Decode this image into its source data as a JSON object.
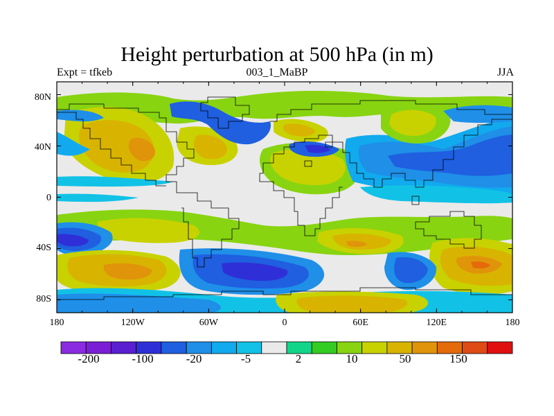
{
  "title": "Height perturbation at 500 hPa (in m)",
  "subtitle_left": "Expt = tfkeb",
  "subtitle_center": "003_1_MaBP",
  "subtitle_right": "JJA",
  "colors": {
    "background": "#ffffff",
    "neutral": "#eaeaea",
    "frame": "#000000"
  },
  "map": {
    "x_ticks": [
      "180",
      "120W",
      "60W",
      "0",
      "60E",
      "120E",
      "180"
    ],
    "y_ticks": [
      "80N",
      "40N",
      "0",
      "40S",
      "80S"
    ],
    "lon_range": [
      -180,
      180
    ],
    "lat_range": [
      -90,
      90
    ]
  },
  "colorbar": {
    "colors": [
      "#8a2be2",
      "#7a1fd6",
      "#5a1fd0",
      "#2f2fd8",
      "#1f5fe0",
      "#1f8fe8",
      "#11aaee",
      "#11c2e6",
      "#eaeaea",
      "#11d68a",
      "#33cc22",
      "#88d411",
      "#c8d200",
      "#d8b400",
      "#e0940a",
      "#e46a0a",
      "#e04a14",
      "#e01010"
    ],
    "labels": [
      "-200",
      "-100",
      "-20",
      "-5",
      "2",
      "10",
      "50",
      "150"
    ]
  }
}
